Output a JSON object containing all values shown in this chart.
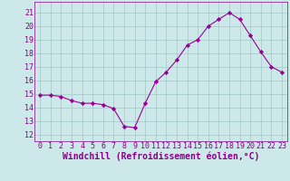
{
  "x": [
    0,
    1,
    2,
    3,
    4,
    5,
    6,
    7,
    8,
    9,
    10,
    11,
    12,
    13,
    14,
    15,
    16,
    17,
    18,
    19,
    20,
    21,
    22,
    23
  ],
  "y": [
    14.9,
    14.9,
    14.8,
    14.5,
    14.3,
    14.3,
    14.2,
    13.9,
    12.6,
    12.5,
    14.3,
    15.9,
    16.6,
    17.5,
    18.6,
    19.0,
    20.0,
    20.5,
    21.0,
    20.5,
    19.3,
    18.1,
    17.0,
    16.6
  ],
  "line_color": "#990099",
  "marker": "D",
  "marker_size": 2.2,
  "bg_color": "#cce8e8",
  "grid_color": "#aacccc",
  "xlabel": "Windchill (Refroidissement éolien,°C)",
  "xlabel_color": "#880088",
  "ylabel_ticks": [
    12,
    13,
    14,
    15,
    16,
    17,
    18,
    19,
    20,
    21
  ],
  "ylim": [
    11.5,
    21.8
  ],
  "xlim": [
    -0.5,
    23.5
  ],
  "tick_color": "#880088",
  "tick_fontsize": 6,
  "xlabel_fontsize": 7
}
